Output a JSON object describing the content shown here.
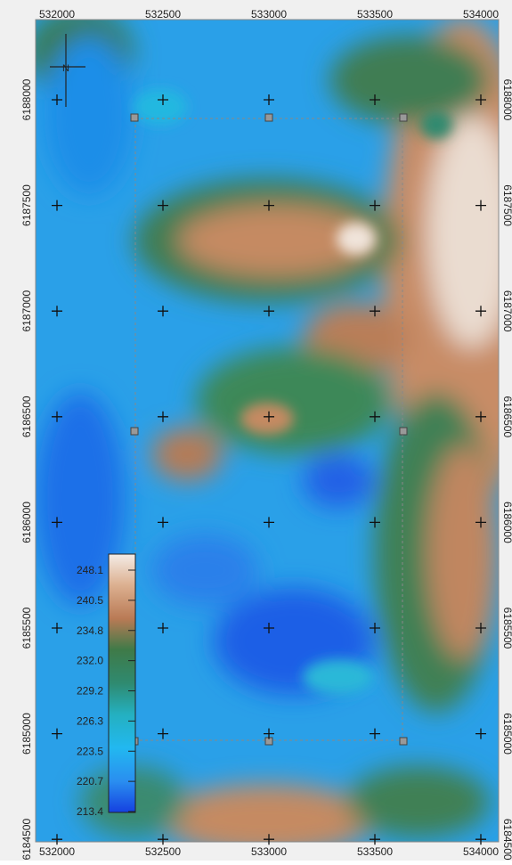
{
  "map": {
    "north_label": "N",
    "eastings": [
      "532000",
      "532500",
      "533000",
      "533500",
      "534000"
    ],
    "northings": [
      "6188000",
      "6187500",
      "6187000",
      "6186500",
      "6186000",
      "6185500",
      "6185000",
      "6184500"
    ],
    "legend": {
      "labels": [
        "248.1",
        "240.5",
        "234.8",
        "232.0",
        "229.2",
        "226.3",
        "223.5",
        "220.7",
        "213.4"
      ]
    }
  }
}
